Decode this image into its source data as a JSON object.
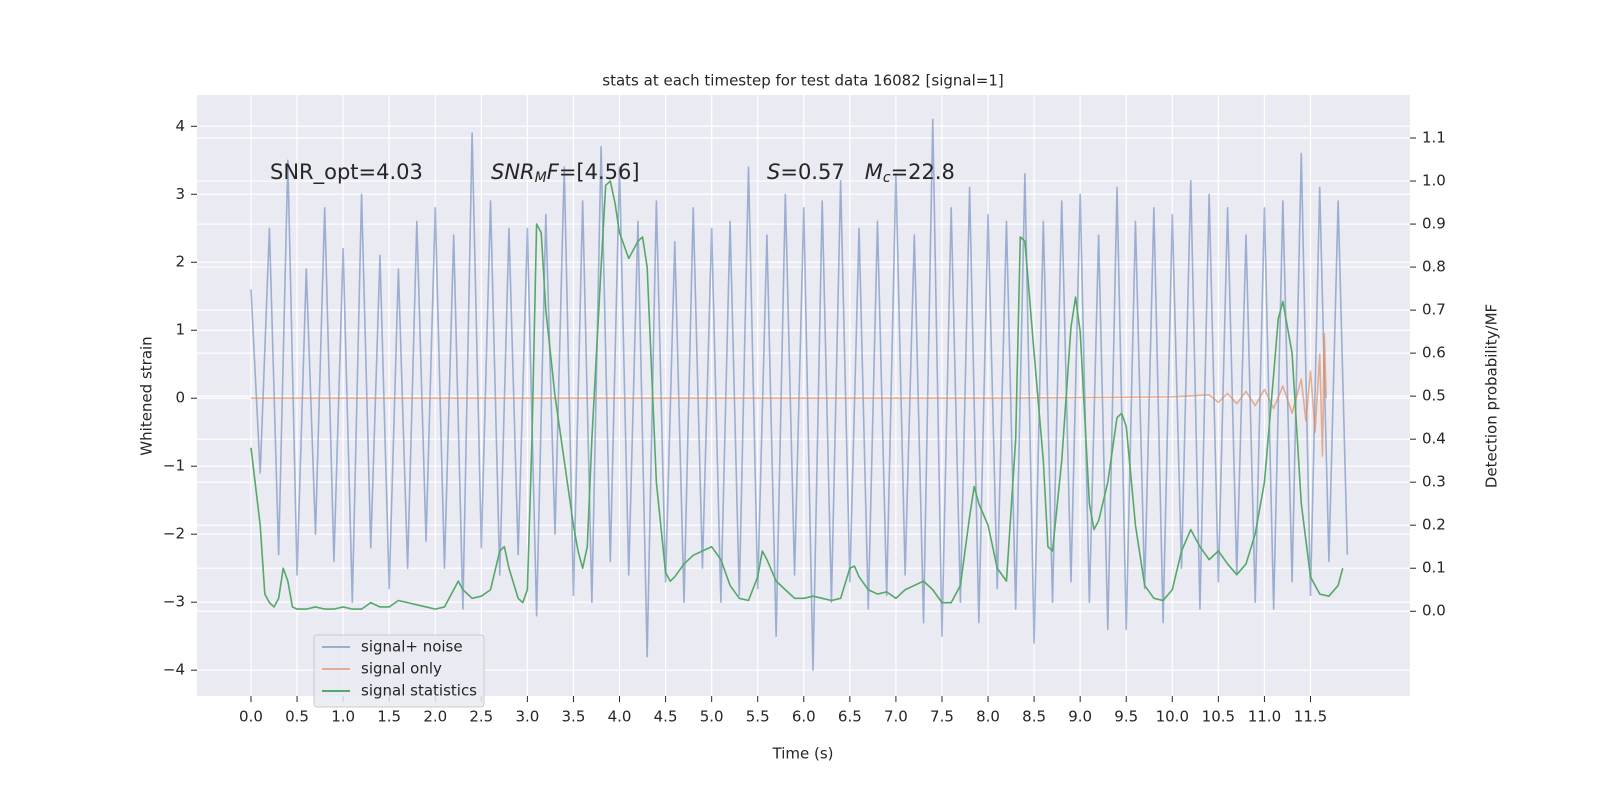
{
  "chart_data": {
    "type": "line",
    "title": "stats at each timestep for test data 16082 [signal=1]",
    "x_label": "Time (s)",
    "y_label": "Whitened strain",
    "y2_label": "Detection probability/MF",
    "annotations": [
      [
        {
          "text": "SNR_opt=4.03",
          "style": "normal"
        }
      ],
      [
        {
          "text": "SNR",
          "style": "italic"
        },
        {
          "text": "M",
          "style": "sub"
        },
        {
          "text": "F",
          "style": "italic"
        },
        {
          "text": "=[4.56]",
          "style": "normal"
        }
      ],
      [
        {
          "text": "S",
          "style": "italic"
        },
        {
          "text": "=0.57   ",
          "style": "normal"
        },
        {
          "text": "M",
          "style": "italic"
        },
        {
          "text": "c",
          "style": "sub"
        },
        {
          "text": "=22.8",
          "style": "normal"
        }
      ]
    ],
    "grid": true,
    "legend": "lower left",
    "xlim": [
      -0.586,
      12.58
    ],
    "ylim": [
      -4.38,
      4.46
    ],
    "y2lim": [
      -0.197,
      1.2
    ],
    "xticks": [
      {
        "value": 0,
        "label": "0.0"
      },
      0.5,
      {
        "value": 1,
        "label": "1.0"
      },
      1.5,
      {
        "value": 2,
        "label": "2.0"
      },
      2.5,
      {
        "value": 3,
        "label": "3.0"
      },
      3.5,
      {
        "value": 4,
        "label": "4.0"
      },
      4.5,
      {
        "value": 5,
        "label": "5.0"
      },
      5.5,
      {
        "value": 6,
        "label": "6.0"
      },
      6.5,
      {
        "value": 7,
        "label": "7.0"
      },
      7.5,
      {
        "value": 8,
        "label": "8.0"
      },
      8.5,
      {
        "value": 9,
        "label": "9.0"
      },
      9.5,
      {
        "value": 10,
        "label": "10.0"
      },
      10.5,
      {
        "value": 11,
        "label": "11.0"
      },
      11.5
    ],
    "yticks": [
      {
        "value": -4,
        "label": "−4"
      },
      {
        "value": -3,
        "label": "−3"
      },
      {
        "value": -2,
        "label": "−2"
      },
      {
        "value": -1,
        "label": "−1"
      },
      0,
      1,
      2,
      3,
      4
    ],
    "y2ticks": [
      {
        "value": 0,
        "label": "0.0"
      },
      0.1,
      0.2,
      0.3,
      0.4,
      0.5,
      0.6,
      0.7,
      0.8,
      0.9,
      {
        "value": 1,
        "label": "1.0"
      },
      1.1
    ],
    "series": [
      {
        "name": "signal+ noise",
        "color": "#4c72b0",
        "opacity": 0.5,
        "x": [
          0,
          0.1,
          0.2,
          0.3,
          0.4,
          0.5,
          0.6,
          0.7,
          0.8,
          0.9,
          1,
          1.1,
          1.2,
          1.3,
          1.4,
          1.5,
          1.6,
          1.7,
          1.8,
          1.9,
          2,
          2.1,
          2.2,
          2.3,
          2.4,
          2.5,
          2.6,
          2.7,
          2.8,
          2.9,
          3,
          3.1,
          3.2,
          3.3,
          3.4,
          3.5,
          3.6,
          3.7,
          3.8,
          3.9,
          4,
          4.1,
          4.2,
          4.3,
          4.4,
          4.5,
          4.6,
          4.7,
          4.8,
          4.9,
          5,
          5.1,
          5.2,
          5.3,
          5.4,
          5.5,
          5.6,
          5.7,
          5.8,
          5.9,
          6,
          6.1,
          6.2,
          6.3,
          6.4,
          6.5,
          6.6,
          6.7,
          6.8,
          6.9,
          7,
          7.1,
          7.2,
          7.3,
          7.4,
          7.5,
          7.6,
          7.7,
          7.8,
          7.9,
          8,
          8.1,
          8.2,
          8.3,
          8.4,
          8.5,
          8.6,
          8.7,
          8.8,
          8.9,
          9,
          9.1,
          9.2,
          9.3,
          9.4,
          9.5,
          9.6,
          9.7,
          9.8,
          9.9,
          10,
          10.1,
          10.2,
          10.3,
          10.4,
          10.5,
          10.6,
          10.7,
          10.8,
          10.9,
          11,
          11.1,
          11.2,
          11.3,
          11.4,
          11.5,
          11.6,
          11.7,
          11.8,
          11.9
        ],
        "values": [
          1.6,
          -1.1,
          2.5,
          -2.3,
          3.5,
          -2.6,
          1.9,
          -2.0,
          2.8,
          -2.4,
          2.2,
          -3.0,
          3.0,
          -2.2,
          2.1,
          -2.8,
          1.9,
          -2.5,
          2.6,
          -2.1,
          2.8,
          -2.5,
          2.4,
          -3.1,
          3.9,
          -2.2,
          2.9,
          -2.6,
          2.5,
          -2.3,
          2.5,
          -3.2,
          2.7,
          -2.0,
          3.4,
          -2.9,
          2.9,
          -3.0,
          3.7,
          -2.4,
          3.4,
          -2.6,
          2.6,
          -3.8,
          2.9,
          -2.7,
          2.3,
          -3.0,
          2.8,
          -2.5,
          2.5,
          -3.0,
          2.6,
          -2.9,
          3.4,
          -2.8,
          2.4,
          -3.5,
          3.0,
          -2.6,
          2.8,
          -4.0,
          2.9,
          -3.0,
          3.2,
          -2.7,
          2.5,
          -3.1,
          2.6,
          -2.9,
          3.3,
          -2.6,
          2.4,
          -3.3,
          4.1,
          -3.5,
          2.8,
          -3.0,
          3.1,
          -3.3,
          2.7,
          -2.8,
          2.6,
          -3.1,
          3.3,
          -3.6,
          2.6,
          -3.0,
          2.9,
          -2.7,
          3.0,
          -3.0,
          2.4,
          -3.4,
          3.1,
          -3.4,
          2.6,
          -2.8,
          2.8,
          -3.3,
          2.7,
          -2.5,
          3.2,
          -3.1,
          3.0,
          -2.7,
          2.8,
          -2.6,
          2.4,
          -3.0,
          2.8,
          -3.1,
          2.9,
          -2.7,
          3.6,
          -2.9,
          3.1,
          -2.4,
          2.9,
          -2.3
        ]
      },
      {
        "name": "signal only",
        "color": "#dd8452",
        "opacity": 0.6,
        "x": [
          0,
          2,
          4,
          6,
          8,
          10,
          10.4,
          10.5,
          10.6,
          10.7,
          10.8,
          10.9,
          11.0,
          11.1,
          11.2,
          11.3,
          11.4,
          11.45,
          11.5,
          11.55,
          11.6,
          11.63,
          11.65,
          11.67
        ],
        "values": [
          0,
          0,
          0,
          0,
          0,
          0.02,
          0.05,
          -0.06,
          0.07,
          -0.08,
          0.1,
          -0.11,
          0.13,
          -0.15,
          0.18,
          -0.22,
          0.28,
          -0.33,
          0.4,
          -0.5,
          0.65,
          -0.85,
          0.95,
          0
        ]
      },
      {
        "name": "signal statistics",
        "color": "#55a868",
        "opacity": 1,
        "axis": "y2",
        "x": [
          0,
          0.1,
          0.15,
          0.2,
          0.25,
          0.3,
          0.35,
          0.4,
          0.45,
          0.5,
          0.6,
          0.7,
          0.8,
          0.9,
          1.0,
          1.1,
          1.2,
          1.3,
          1.4,
          1.5,
          1.6,
          1.7,
          1.8,
          1.9,
          2.0,
          2.1,
          2.2,
          2.25,
          2.3,
          2.4,
          2.5,
          2.6,
          2.7,
          2.75,
          2.8,
          2.9,
          2.95,
          3.0,
          3.05,
          3.1,
          3.15,
          3.2,
          3.3,
          3.4,
          3.5,
          3.55,
          3.6,
          3.65,
          3.7,
          3.8,
          3.85,
          3.9,
          3.95,
          4.0,
          4.1,
          4.2,
          4.25,
          4.3,
          4.4,
          4.5,
          4.55,
          4.6,
          4.7,
          4.8,
          4.9,
          5.0,
          5.1,
          5.2,
          5.3,
          5.4,
          5.5,
          5.55,
          5.6,
          5.7,
          5.8,
          5.9,
          6.0,
          6.1,
          6.2,
          6.3,
          6.4,
          6.5,
          6.55,
          6.6,
          6.7,
          6.8,
          6.9,
          7.0,
          7.1,
          7.2,
          7.3,
          7.4,
          7.5,
          7.6,
          7.7,
          7.8,
          7.85,
          7.9,
          8.0,
          8.1,
          8.2,
          8.3,
          8.35,
          8.4,
          8.5,
          8.6,
          8.65,
          8.7,
          8.8,
          8.9,
          8.95,
          9.0,
          9.05,
          9.1,
          9.15,
          9.2,
          9.3,
          9.4,
          9.45,
          9.5,
          9.6,
          9.7,
          9.8,
          9.9,
          10.0,
          10.1,
          10.2,
          10.3,
          10.4,
          10.5,
          10.6,
          10.7,
          10.8,
          10.9,
          11.0,
          11.1,
          11.15,
          11.2,
          11.3,
          11.4,
          11.5,
          11.6,
          11.7,
          11.8,
          11.85
        ],
        "values": [
          0.38,
          0.2,
          0.04,
          0.02,
          0.01,
          0.03,
          0.1,
          0.07,
          0.01,
          0.005,
          0.005,
          0.01,
          0.005,
          0.005,
          0.01,
          0.005,
          0.005,
          0.02,
          0.01,
          0.01,
          0.025,
          0.02,
          0.015,
          0.01,
          0.005,
          0.01,
          0.05,
          0.07,
          0.05,
          0.03,
          0.035,
          0.05,
          0.14,
          0.15,
          0.1,
          0.03,
          0.02,
          0.05,
          0.4,
          0.9,
          0.88,
          0.7,
          0.5,
          0.35,
          0.2,
          0.14,
          0.1,
          0.15,
          0.4,
          0.8,
          0.99,
          1.0,
          0.95,
          0.88,
          0.82,
          0.86,
          0.87,
          0.8,
          0.3,
          0.09,
          0.07,
          0.08,
          0.11,
          0.13,
          0.14,
          0.15,
          0.12,
          0.06,
          0.03,
          0.025,
          0.08,
          0.14,
          0.12,
          0.07,
          0.05,
          0.03,
          0.03,
          0.035,
          0.03,
          0.025,
          0.03,
          0.1,
          0.105,
          0.08,
          0.05,
          0.04,
          0.045,
          0.03,
          0.05,
          0.06,
          0.07,
          0.05,
          0.02,
          0.02,
          0.06,
          0.22,
          0.29,
          0.25,
          0.2,
          0.1,
          0.07,
          0.4,
          0.87,
          0.86,
          0.6,
          0.35,
          0.15,
          0.14,
          0.35,
          0.66,
          0.73,
          0.65,
          0.45,
          0.25,
          0.19,
          0.21,
          0.3,
          0.45,
          0.46,
          0.43,
          0.2,
          0.06,
          0.03,
          0.025,
          0.05,
          0.14,
          0.19,
          0.15,
          0.12,
          0.14,
          0.11,
          0.085,
          0.11,
          0.18,
          0.3,
          0.55,
          0.68,
          0.72,
          0.6,
          0.25,
          0.08,
          0.04,
          0.035,
          0.06,
          0.1
        ]
      }
    ]
  }
}
